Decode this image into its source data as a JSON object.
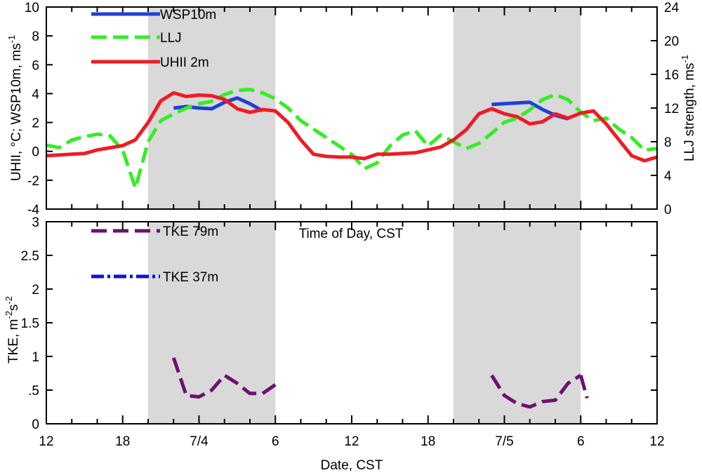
{
  "colors": {
    "wsp": "#1f3fd6",
    "llj": "#33ee22",
    "uhii": "#ee1c24",
    "tke79": "#6e1070",
    "tke37": "#1111d6",
    "shade": "#d9d9d9"
  },
  "chart_data": [
    {
      "panel": "top",
      "type": "line",
      "x_unit": "hours since 7/3 12:00 CST",
      "xlim": [
        0,
        48
      ],
      "shaded_ranges": [
        [
          8,
          18
        ],
        [
          32,
          42
        ]
      ],
      "ylabel": "UHII, °C; WSP10m, ms",
      "ylabel_sup": "-1",
      "ylim": [
        -4,
        10
      ],
      "yticks": [
        -4,
        -2,
        0,
        2,
        4,
        6,
        8,
        10
      ],
      "ytick_labels": [
        "-4",
        "-2",
        "0",
        "2",
        "4",
        "6",
        "8",
        "10"
      ],
      "y2label": "LLJ strength, ms",
      "y2label_sup": "-1",
      "y2lim": [
        0,
        24
      ],
      "y2ticks": [
        0,
        4,
        8,
        12,
        16,
        20,
        24
      ],
      "y2tick_labels": [
        "0",
        "4",
        "8",
        "12",
        "16",
        "20",
        "24"
      ],
      "inner_text": "Time of Day, CST",
      "series": [
        {
          "key": "wsp",
          "name": "WSP10m",
          "axis": "left",
          "dash": "solid",
          "x": [
            10,
            11,
            12,
            13,
            14,
            15,
            16,
            17
          ],
          "y": [
            3.0,
            3.1,
            3.0,
            2.95,
            3.4,
            3.7,
            3.3,
            2.8
          ]
        },
        {
          "key": "wsp",
          "name": "WSP10m",
          "axis": "left",
          "dash": "solid",
          "legend": false,
          "x": [
            35,
            36,
            37,
            38,
            39,
            40,
            41
          ],
          "y": [
            3.25,
            3.3,
            3.35,
            3.4,
            2.9,
            2.5,
            2.25
          ]
        },
        {
          "key": "llj",
          "name": "LLJ",
          "axis": "right",
          "dash": "dashed",
          "x": [
            0,
            1,
            2,
            3,
            4,
            5,
            6,
            7,
            8,
            9,
            10,
            11,
            12,
            13,
            14,
            15,
            16,
            17,
            18,
            19,
            20,
            21,
            22,
            23,
            24,
            25,
            26,
            27,
            28,
            29,
            30,
            31,
            32,
            33,
            34,
            35,
            36,
            37,
            38,
            39,
            40,
            41,
            42,
            43,
            44,
            45,
            46,
            47,
            48
          ],
          "y": [
            7.6,
            7.3,
            8.2,
            8.6,
            8.9,
            8.7,
            7.0,
            2.5,
            8.0,
            10.5,
            11.3,
            12.0,
            12.5,
            12.8,
            13.6,
            14.1,
            14.2,
            13.8,
            13.1,
            12.0,
            10.5,
            9.5,
            8.5,
            7.5,
            6.5,
            4.8,
            5.5,
            7.5,
            8.8,
            9.3,
            7.5,
            8.8,
            8.0,
            7.2,
            7.8,
            9.0,
            10.3,
            10.8,
            11.8,
            13.0,
            13.6,
            13.0,
            11.5,
            10.5,
            10.8,
            9.5,
            8.5,
            7.0,
            7.2
          ]
        },
        {
          "key": "uhii",
          "name": "UHII 2m",
          "axis": "left",
          "dash": "solid",
          "x": [
            0,
            1,
            2,
            3,
            4,
            5,
            6,
            7,
            8,
            9,
            10,
            11,
            12,
            13,
            14,
            15,
            16,
            17,
            18,
            19,
            20,
            21,
            22,
            23,
            24,
            25,
            26,
            27,
            28,
            29,
            30,
            31,
            32,
            33,
            34,
            35,
            36,
            37,
            38,
            39,
            40,
            41,
            42,
            43,
            44,
            45,
            46,
            47,
            48
          ],
          "y": [
            -0.3,
            -0.25,
            -0.2,
            -0.15,
            0.1,
            0.25,
            0.4,
            0.8,
            2.0,
            3.5,
            4.05,
            3.8,
            3.9,
            3.85,
            3.6,
            2.95,
            2.7,
            2.9,
            2.8,
            2.0,
            0.8,
            -0.2,
            -0.35,
            -0.4,
            -0.4,
            -0.5,
            -0.2,
            -0.2,
            -0.15,
            -0.1,
            0.1,
            0.3,
            0.8,
            1.5,
            2.6,
            2.95,
            2.6,
            2.4,
            1.9,
            2.05,
            2.6,
            2.3,
            2.65,
            2.8,
            1.9,
            0.8,
            -0.3,
            -0.65,
            -0.4
          ]
        }
      ]
    },
    {
      "panel": "bottom",
      "type": "line",
      "x_unit": "hours since 7/3 12:00 CST",
      "xlim": [
        0,
        48
      ],
      "shaded_ranges": [
        [
          8,
          18
        ],
        [
          32,
          42
        ]
      ],
      "ylabel": "TKE, m",
      "ylabel_sup1": "-2",
      "ylabel_mid": "s",
      "ylabel_sup2": "-2",
      "ylim": [
        0,
        3
      ],
      "yticks": [
        0,
        0.5,
        1,
        1.5,
        2,
        2.5,
        3
      ],
      "ytick_labels": [
        "0",
        ".5",
        "1",
        "1.5",
        "2",
        "2.5",
        "3"
      ],
      "xlabel": "Date, CST",
      "xticks": [
        0,
        6,
        12,
        18,
        24,
        30,
        36,
        42,
        48
      ],
      "xtick_labels": [
        "12",
        "18",
        "7/4",
        "6",
        "12",
        "18",
        "7/5",
        "6",
        "12"
      ],
      "series": [
        {
          "key": "tke79",
          "name": "TKE 79m",
          "axis": "left",
          "dash": "dashed",
          "x": [
            10,
            11,
            12,
            13,
            14,
            15,
            16,
            17,
            18
          ],
          "y": [
            0.98,
            0.42,
            0.4,
            0.5,
            0.72,
            0.6,
            0.45,
            0.45,
            0.58
          ]
        },
        {
          "key": "tke79",
          "name": "TKE 79m",
          "axis": "left",
          "dash": "dashed",
          "legend": false,
          "x": [
            35,
            36,
            37,
            38,
            39,
            40,
            41,
            42
          ],
          "y": [
            0.72,
            0.42,
            0.3,
            0.25,
            0.33,
            0.35,
            0.6,
            0.72
          ]
        },
        {
          "key": "tke79",
          "name": "TKE 79m",
          "axis": "left",
          "dash": "dashed",
          "legend": false,
          "x": [
            42,
            42.5
          ],
          "y": [
            0.72,
            0.38
          ]
        },
        {
          "key": "tke37",
          "name": "TKE 37m",
          "axis": "left",
          "dash": "dashdot",
          "x": [],
          "y": []
        }
      ]
    }
  ]
}
